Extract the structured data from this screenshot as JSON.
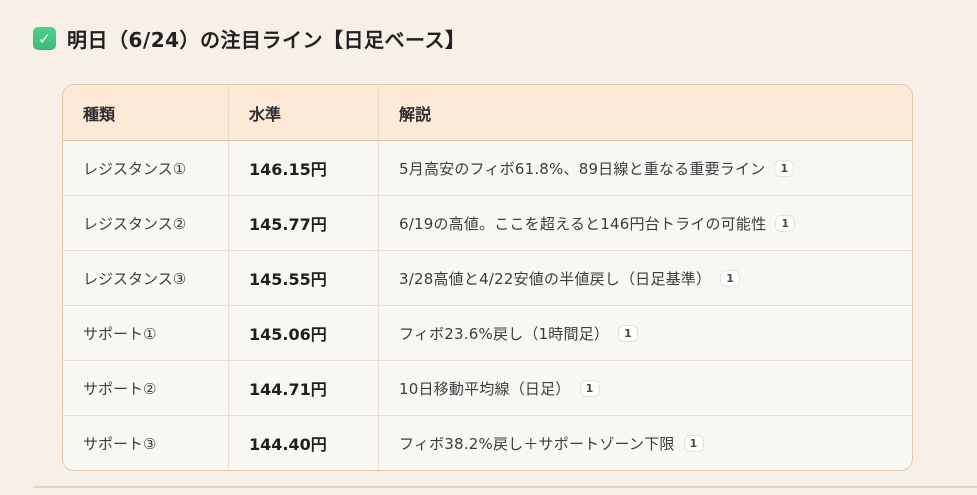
{
  "header": {
    "icon": "check-mark",
    "check_glyph": "✓",
    "title": "明日（6/24）の注目ライン【日足ベース】"
  },
  "table": {
    "columns": [
      "種類",
      "水準",
      "解説"
    ],
    "rows": [
      {
        "type": "レジスタンス①",
        "level": "146.15円",
        "desc": "5月高安のフィボ61.8%、89日線と重なる重要ライン",
        "badge": "1"
      },
      {
        "type": "レジスタンス②",
        "level": "145.77円",
        "desc": "6/19の高値。ここを超えると146円台トライの可能性",
        "badge": "1"
      },
      {
        "type": "レジスタンス③",
        "level": "145.55円",
        "desc": "3/28高値と4/22安値の半値戻し（日足基準）",
        "badge": "1"
      },
      {
        "type": "サポート①",
        "level": "145.06円",
        "desc": "フィボ23.6%戻し（1時間足）",
        "badge": "1"
      },
      {
        "type": "サポート②",
        "level": "144.71円",
        "desc": "10日移動平均線（日足）",
        "badge": "1"
      },
      {
        "type": "サポート③",
        "level": "144.40円",
        "desc": "フィボ38.2%戻し＋サポートゾーン下限",
        "badge": "1"
      }
    ]
  },
  "colors": {
    "page_background": "#f8f0e7",
    "table_header_background": "#fcead7",
    "table_row_background": "#f8f7f4",
    "table_border": "#e2c6ac",
    "check_green": "#43c583",
    "divider": "#e9d4c1"
  }
}
